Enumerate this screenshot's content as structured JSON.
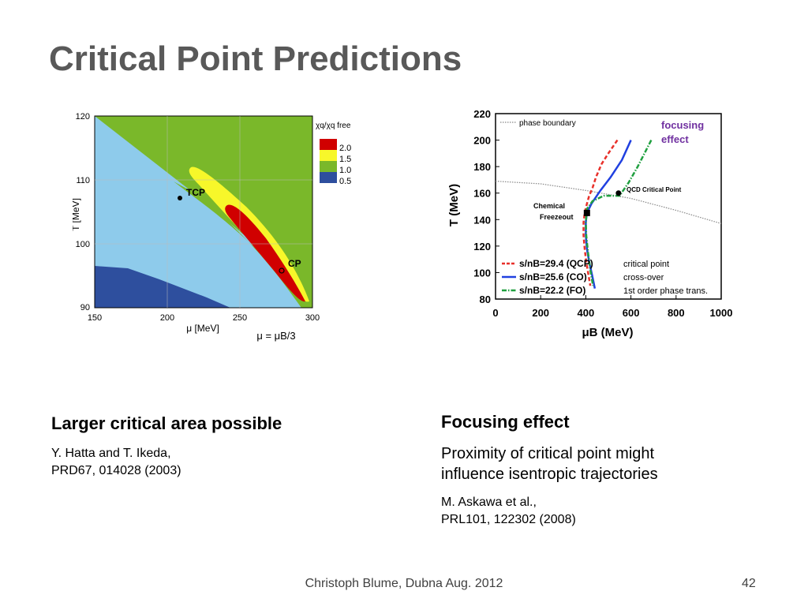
{
  "slide": {
    "title": "Critical Point Predictions",
    "footer": "Christoph Blume, Dubna Aug. 2012",
    "page_number": "42"
  },
  "left_caption": {
    "heading": "Larger critical area possible",
    "ref_line1": "Y. Hatta and T. Ikeda,",
    "ref_line2": "PRD67, 014028 (2003)"
  },
  "right_caption": {
    "heading": "Focusing effect",
    "text_line1": "Proximity of critical point might",
    "text_line2": "influence isentropic trajectories",
    "ref_line1": "M. Askawa et al.,",
    "ref_line2": "PRL101, 122302 (2008)"
  },
  "chart_data": [
    {
      "type": "heatmap",
      "xlabel": "μ [MeV]",
      "xlabel2": "μ = μB/3",
      "ylabel": "T [MeV]",
      "xlim": [
        150,
        300
      ],
      "ylim": [
        90,
        120
      ],
      "x_ticks": [
        "150",
        "200",
        "250",
        "300"
      ],
      "y_ticks": [
        "90",
        "100",
        "110",
        "120"
      ],
      "legend_title": "χq/χq free",
      "legend": [
        {
          "label": "2.0",
          "color": "#d00000"
        },
        {
          "label": "1.5",
          "color": "#f7f72a"
        },
        {
          "label": "1.0",
          "color": "#7ab82a"
        },
        {
          "label": "0.5",
          "color": "#2e4f9e"
        }
      ],
      "background_color": "#8ecbeb",
      "annotations": [
        {
          "label": "TCP",
          "x": 209,
          "y": 107
        },
        {
          "label": "CP",
          "x": 278,
          "y": 95.5
        }
      ]
    },
    {
      "type": "line",
      "xlabel": "μB (MeV)",
      "ylabel": "T (MeV)",
      "xlim": [
        0,
        1000
      ],
      "ylim": [
        80,
        220
      ],
      "x_ticks": [
        "0",
        "200",
        "400",
        "600",
        "800",
        "1000"
      ],
      "y_ticks": [
        "80",
        "100",
        "120",
        "140",
        "160",
        "180",
        "200",
        "220"
      ],
      "top_legend": "phase boundary",
      "focus_label_line1": "focusing",
      "focus_label_line2": "effect",
      "focus_color": "#7030a0",
      "qcd_label": "QCD Critical Point",
      "chem_label_line1": "Chemical",
      "chem_label_line2": "Freezeout",
      "legend": [
        {
          "label": "s/nB=29.4 (QCP)",
          "desc": "critical point",
          "color": "#e8302a",
          "style": "dashed"
        },
        {
          "label": "s/nB=25.6 (CO)",
          "desc": "cross-over",
          "color": "#2040e0",
          "style": "solid"
        },
        {
          "label": "s/nB=22.2 (FO)",
          "desc": "1st order phase trans.",
          "color": "#20a040",
          "style": "dashdot"
        }
      ],
      "series": [
        {
          "name": "phase boundary",
          "color": "#888888",
          "x": [
            0,
            200,
            400,
            600,
            800,
            1000
          ],
          "y": [
            169,
            167,
            162,
            156,
            147,
            137
          ]
        },
        {
          "name": "s/nB=29.4 (QCP)",
          "color": "#e8302a",
          "x": [
            540,
            500,
            470,
            445,
            430,
            415,
            405,
            395,
            390,
            390,
            395,
            402,
            410,
            420
          ],
          "y": [
            200,
            190,
            182,
            172,
            164,
            158,
            152,
            145,
            138,
            128,
            118,
            108,
            100,
            90
          ]
        },
        {
          "name": "s/nB=25.6 (CO)",
          "color": "#2040e0",
          "x": [
            600,
            560,
            510,
            465,
            425,
            405,
            400,
            400,
            405,
            415,
            428,
            440
          ],
          "y": [
            200,
            185,
            172,
            162,
            152,
            145,
            138,
            128,
            118,
            108,
            98,
            88
          ]
        },
        {
          "name": "s/nB=22.2 (FO)",
          "color": "#20a040",
          "x": [
            690,
            630,
            590,
            550,
            480,
            430,
            405,
            400,
            402,
            410,
            420,
            432
          ],
          "y": [
            200,
            180,
            168,
            158,
            158,
            154,
            148,
            138,
            128,
            115,
            102,
            90
          ]
        }
      ],
      "points": [
        {
          "label": "QCD Critical Point",
          "x": 545,
          "y": 160
        },
        {
          "label": "Chemical Freezeout",
          "x": 405,
          "y": 145
        }
      ]
    }
  ]
}
